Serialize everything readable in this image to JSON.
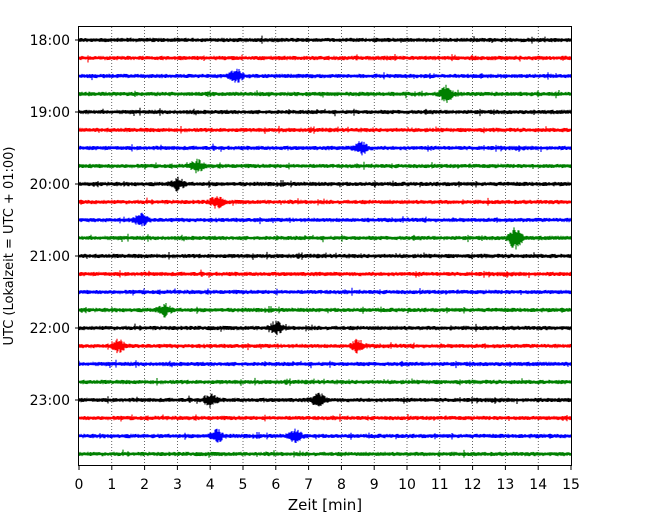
{
  "chart_data": {
    "type": "line",
    "title": "",
    "xlabel": "Zeit  [min]",
    "ylabel": "UTC (Lokalzeit = UTC + 01:00)",
    "xlim": [
      0,
      15
    ],
    "x_ticks": [
      "0",
      "1",
      "2",
      "3",
      "4",
      "5",
      "6",
      "7",
      "8",
      "9",
      "10",
      "11",
      "12",
      "13",
      "14",
      "15"
    ],
    "y_tick_labels": [
      "18:00",
      "19:00",
      "20:00",
      "21:00",
      "22:00",
      "23:00"
    ],
    "grid": "vertical dotted",
    "trace_interval_minutes": 15,
    "color_cycle": [
      "#000000",
      "#ff0000",
      "#0000ff",
      "#008000"
    ],
    "series": [
      {
        "start": "18:00",
        "color": "#000000"
      },
      {
        "start": "18:15",
        "color": "#ff0000"
      },
      {
        "start": "18:30",
        "color": "#0000ff"
      },
      {
        "start": "18:45",
        "color": "#008000"
      },
      {
        "start": "19:00",
        "color": "#000000"
      },
      {
        "start": "19:15",
        "color": "#ff0000"
      },
      {
        "start": "19:30",
        "color": "#0000ff"
      },
      {
        "start": "19:45",
        "color": "#008000"
      },
      {
        "start": "20:00",
        "color": "#000000"
      },
      {
        "start": "20:15",
        "color": "#ff0000"
      },
      {
        "start": "20:30",
        "color": "#0000ff"
      },
      {
        "start": "20:45",
        "color": "#008000"
      },
      {
        "start": "21:00",
        "color": "#000000"
      },
      {
        "start": "21:15",
        "color": "#ff0000"
      },
      {
        "start": "21:30",
        "color": "#0000ff"
      },
      {
        "start": "21:45",
        "color": "#008000"
      },
      {
        "start": "22:00",
        "color": "#000000"
      },
      {
        "start": "22:15",
        "color": "#ff0000"
      },
      {
        "start": "22:30",
        "color": "#0000ff"
      },
      {
        "start": "22:45",
        "color": "#008000"
      },
      {
        "start": "23:00",
        "color": "#000000"
      },
      {
        "start": "23:15",
        "color": "#ff0000"
      },
      {
        "start": "23:30",
        "color": "#0000ff"
      },
      {
        "start": "23:45",
        "color": "#008000"
      }
    ],
    "bursts": [
      {
        "trace": "18:45",
        "x": 11.2,
        "amp": 1.6
      },
      {
        "trace": "18:30",
        "x": 4.8,
        "amp": 1.3
      },
      {
        "trace": "19:30",
        "x": 8.6,
        "amp": 1.3
      },
      {
        "trace": "19:45",
        "x": 3.6,
        "amp": 1.2
      },
      {
        "trace": "20:00",
        "x": 3.0,
        "amp": 1.2
      },
      {
        "trace": "20:15",
        "x": 4.2,
        "amp": 1.2
      },
      {
        "trace": "20:30",
        "x": 1.9,
        "amp": 1.2
      },
      {
        "trace": "20:45",
        "x": 13.3,
        "amp": 2.3
      },
      {
        "trace": "21:45",
        "x": 2.6,
        "amp": 1.2
      },
      {
        "trace": "22:00",
        "x": 6.0,
        "amp": 1.3
      },
      {
        "trace": "22:15",
        "x": 1.2,
        "amp": 1.2
      },
      {
        "trace": "22:15",
        "x": 8.5,
        "amp": 1.2
      },
      {
        "trace": "23:00",
        "x": 4.0,
        "amp": 1.3
      },
      {
        "trace": "23:00",
        "x": 7.3,
        "amp": 1.4
      },
      {
        "trace": "23:30",
        "x": 4.2,
        "amp": 1.2
      },
      {
        "trace": "23:30",
        "x": 6.6,
        "amp": 1.2
      }
    ]
  }
}
